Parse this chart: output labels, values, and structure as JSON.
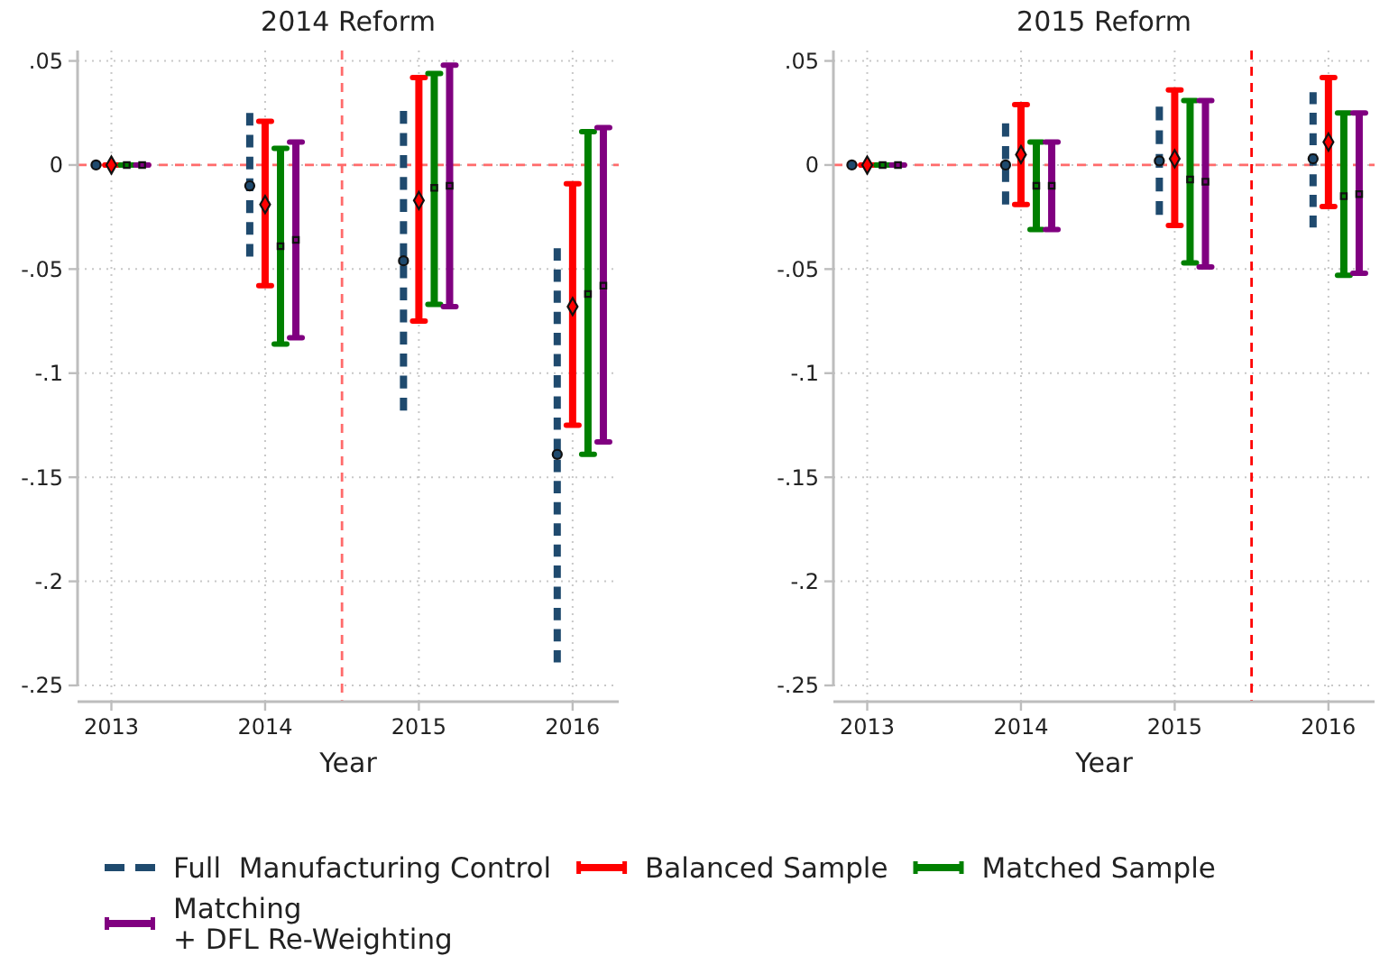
{
  "chart_data": [
    {
      "type": "scatter",
      "title": "2014 Reform",
      "xlabel": "Year",
      "xlim": [
        2012.78,
        2016.3
      ],
      "xticks": [
        2013,
        2014,
        2015,
        2016
      ],
      "ylim": [
        -0.25,
        0.055
      ],
      "yticks": [
        {
          "value": 0.05,
          "label": ".05"
        },
        0,
        {
          "value": -0.05,
          "label": "-.05"
        },
        {
          "value": -0.1,
          "label": "-.1"
        },
        {
          "value": -0.15,
          "label": "-.15"
        },
        {
          "value": -0.2,
          "label": "-.2"
        },
        {
          "value": -0.25,
          "label": "-.25"
        }
      ],
      "grid": true,
      "legend": "bottom",
      "ref_lines": [
        {
          "axis": "y",
          "value": 0,
          "color": "#ff6b6b",
          "line_style": "dashed"
        },
        {
          "axis": "x",
          "value": 2014.5,
          "color": "#ff6b6b",
          "line_style": "dashed"
        }
      ],
      "series": [
        {
          "name": "Full  Manufacturing Control",
          "color": "#1f4a6e",
          "line_style": "dashed",
          "marker": "circle",
          "x": [
            2012.9,
            2013.9,
            2014.9,
            2015.9
          ],
          "values": [
            0,
            -0.01,
            -0.046,
            -0.139
          ],
          "errors": [
            [
              0,
              0
            ],
            [
              -0.044,
              0.025
            ],
            [
              -0.118,
              0.026
            ],
            [
              -0.239,
              -0.04
            ]
          ]
        },
        {
          "name": "Balanced Sample",
          "color": "#ff0000",
          "marker": "diamond",
          "x": [
            2013,
            2014,
            2015,
            2016
          ],
          "values": [
            0,
            -0.019,
            -0.017,
            -0.068
          ],
          "errors": [
            [
              0,
              0
            ],
            [
              -0.058,
              0.021
            ],
            [
              -0.075,
              0.042
            ],
            [
              -0.125,
              -0.009
            ]
          ]
        },
        {
          "name": "Matched Sample",
          "color": "#008000",
          "marker": "square",
          "x": [
            2013.1,
            2014.1,
            2015.1,
            2016.1
          ],
          "values": [
            0,
            -0.039,
            -0.011,
            -0.062
          ],
          "errors": [
            [
              0,
              0
            ],
            [
              -0.086,
              0.008
            ],
            [
              -0.067,
              0.044
            ],
            [
              -0.139,
              0.016
            ]
          ]
        },
        {
          "name": "Matching\n+ DFL Re-Weighting",
          "color": "#800080",
          "marker": "square",
          "x": [
            2013.2,
            2014.2,
            2015.2,
            2016.2
          ],
          "values": [
            0,
            -0.036,
            -0.01,
            -0.058
          ],
          "errors": [
            [
              0,
              0
            ],
            [
              -0.083,
              0.011
            ],
            [
              -0.068,
              0.048
            ],
            [
              -0.133,
              0.018
            ]
          ]
        }
      ]
    },
    {
      "type": "scatter",
      "title": "2015 Reform",
      "xlabel": "Year",
      "xlim": [
        2012.78,
        2016.3
      ],
      "xticks": [
        2013,
        2014,
        2015,
        2016
      ],
      "ylim": [
        -0.25,
        0.055
      ],
      "yticks": [
        {
          "value": 0.05,
          "label": ".05"
        },
        0,
        {
          "value": -0.05,
          "label": "-.05"
        },
        {
          "value": -0.1,
          "label": "-.1"
        },
        {
          "value": -0.15,
          "label": "-.15"
        },
        {
          "value": -0.2,
          "label": "-.2"
        },
        {
          "value": -0.25,
          "label": "-.25"
        }
      ],
      "grid": true,
      "ref_lines": [
        {
          "axis": "y",
          "value": 0,
          "color": "#ff6b6b",
          "line_style": "dashed"
        },
        {
          "axis": "x",
          "value": 2015.5,
          "color": "#ff0000",
          "line_style": "dashed"
        }
      ],
      "series": [
        {
          "color": "#1f4a6e",
          "line_style": "dashed",
          "marker": "circle",
          "x": [
            2012.9,
            2013.9,
            2014.9,
            2015.9
          ],
          "values": [
            0,
            0,
            0.002,
            0.003
          ],
          "errors": [
            [
              0,
              0
            ],
            [
              -0.019,
              0.02
            ],
            [
              -0.024,
              0.028
            ],
            [
              -0.03,
              0.035
            ]
          ]
        },
        {
          "color": "#ff0000",
          "marker": "diamond",
          "x": [
            2013,
            2014,
            2015,
            2016
          ],
          "values": [
            0,
            0.005,
            0.003,
            0.011
          ],
          "errors": [
            [
              0,
              0
            ],
            [
              -0.019,
              0.029
            ],
            [
              -0.029,
              0.036
            ],
            [
              -0.02,
              0.042
            ]
          ]
        },
        {
          "color": "#008000",
          "marker": "square",
          "x": [
            2013.1,
            2014.1,
            2015.1,
            2016.1
          ],
          "values": [
            0,
            -0.01,
            -0.007,
            -0.015
          ],
          "errors": [
            [
              0,
              0
            ],
            [
              -0.031,
              0.011
            ],
            [
              -0.047,
              0.031
            ],
            [
              -0.053,
              0.025
            ]
          ]
        },
        {
          "color": "#800080",
          "marker": "square",
          "x": [
            2013.2,
            2014.2,
            2015.2,
            2016.2
          ],
          "values": [
            0,
            -0.01,
            -0.008,
            -0.014
          ],
          "errors": [
            [
              0,
              0
            ],
            [
              -0.031,
              0.011
            ],
            [
              -0.049,
              0.031
            ],
            [
              -0.052,
              0.025
            ]
          ]
        }
      ]
    }
  ]
}
